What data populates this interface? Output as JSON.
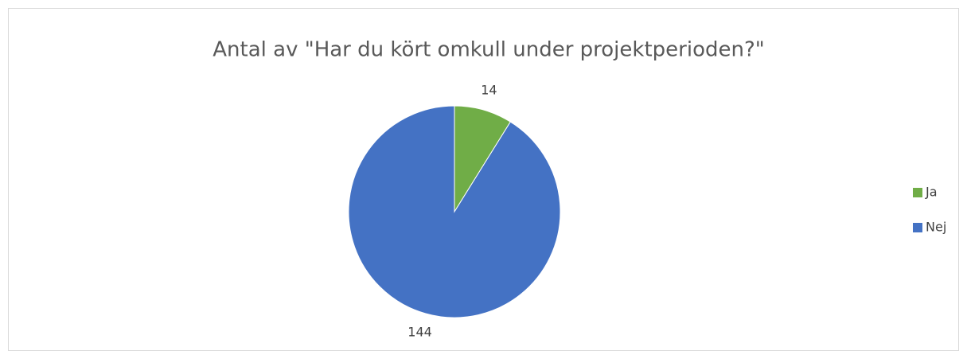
{
  "chart_data": {
    "type": "pie",
    "title": "Antal av \"Har du kört omkull under projektperioden?\"",
    "categories": [
      "Ja",
      "Nej"
    ],
    "values": [
      14,
      144
    ],
    "colors": [
      "#70ad47",
      "#4472c4"
    ],
    "legend": "right"
  }
}
